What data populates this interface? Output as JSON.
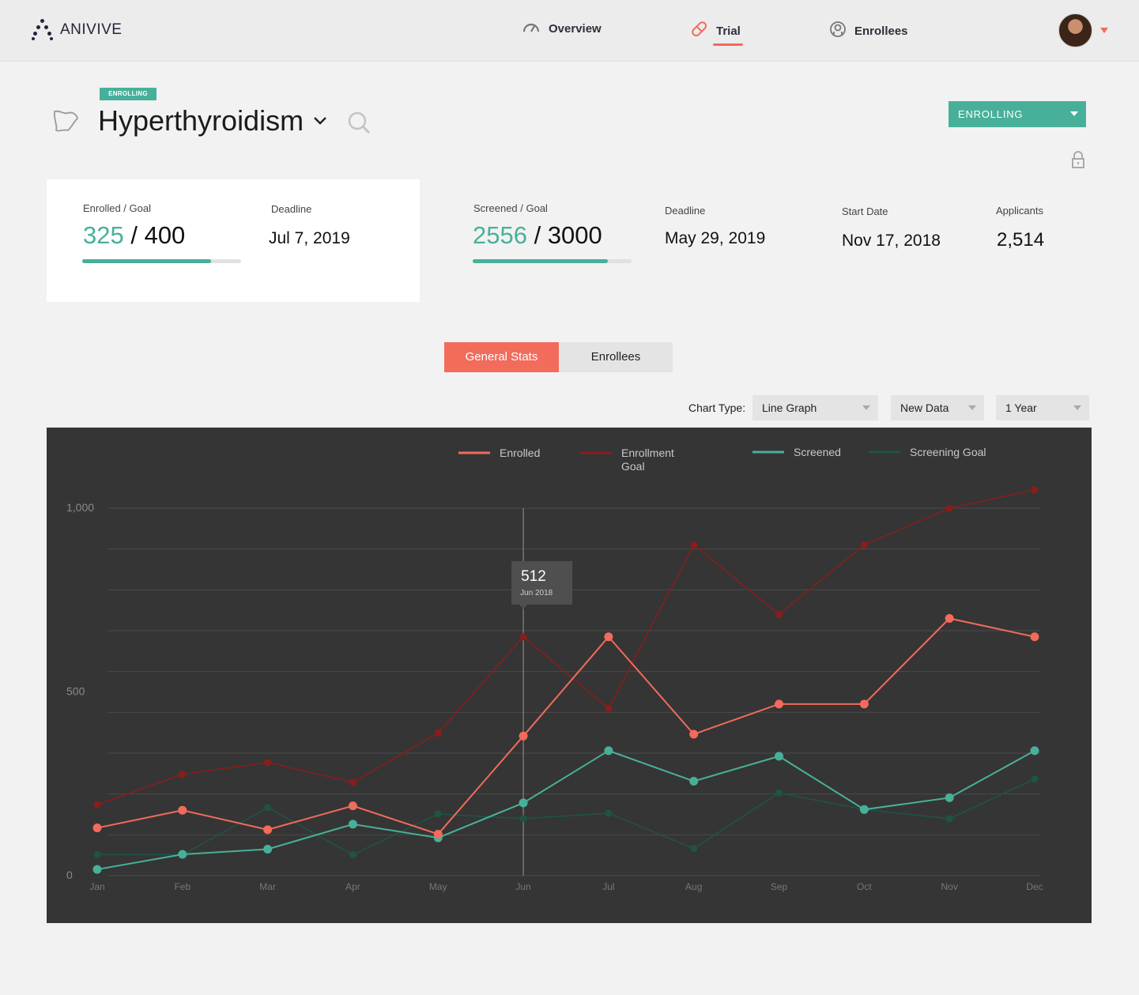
{
  "app": {
    "name": "ANIVIVE"
  },
  "nav": {
    "items": [
      {
        "label": "Overview",
        "icon": "speedometer-icon"
      },
      {
        "label": "Trial",
        "icon": "pill-icon",
        "active": true
      },
      {
        "label": "Enrollees",
        "icon": "user-circle-icon"
      }
    ]
  },
  "header": {
    "badge": "ENROLLING",
    "title": "Hyperthyroidism",
    "status_select": "ENROLLING"
  },
  "stats": {
    "enrolled_label": "Enrolled / Goal",
    "enrolled_value": "325",
    "enrolled_goal": "400",
    "enrolled_progress": 0.81,
    "deadline1_label": "Deadline",
    "deadline1_value": "Jul 7, 2019",
    "screened_label": "Screened / Goal",
    "screened_value": "2556",
    "screened_goal": "3000",
    "screened_progress": 0.85,
    "deadline2_label": "Deadline",
    "deadline2_value": "May 29, 2019",
    "start_label": "Start Date",
    "start_value": "Nov 17, 2018",
    "applicants_label": "Applicants",
    "applicants_value": "2,514"
  },
  "tabs": {
    "general": "General Stats",
    "enrollees": "Enrollees"
  },
  "controls": {
    "chart_type_label": "Chart Type:",
    "chart_type": "Line Graph",
    "data_select": "New Data",
    "range_select": "1 Year"
  },
  "chart_data": {
    "type": "line",
    "categories": [
      "Jan",
      "Feb",
      "Mar",
      "Apr",
      "May",
      "Jun",
      "Jul",
      "Aug",
      "Sep",
      "Oct",
      "Nov",
      "Dec"
    ],
    "y_tick_labels": [
      "1,000",
      "500",
      "0"
    ],
    "y_ticks": [
      1000,
      500,
      0
    ],
    "ylim": [
      0,
      1000
    ],
    "grid": true,
    "legend_position": "top",
    "series": [
      {
        "name": "Enrolled",
        "color": "#f26b5b",
        "values": [
          130,
          178,
          125,
          190,
          113,
          380,
          650,
          385,
          467,
          467,
          700,
          650
        ]
      },
      {
        "name": "Enrollment Goal",
        "color": "#8b1c1c",
        "values": [
          193,
          276,
          308,
          254,
          388,
          650,
          455,
          900,
          711,
          900,
          1000,
          1050
        ]
      },
      {
        "name": "Screened",
        "color": "#48b09a",
        "values": [
          17,
          58,
          72,
          140,
          103,
          198,
          340,
          257,
          325,
          180,
          212,
          340
        ]
      },
      {
        "name": "Screening Goal",
        "color": "#1e5448",
        "values": [
          57,
          57,
          185,
          57,
          168,
          155,
          170,
          74,
          225,
          180,
          155,
          263
        ]
      }
    ],
    "tooltip": {
      "value": "512",
      "label": "Jun 2018",
      "category": "Jun"
    }
  }
}
